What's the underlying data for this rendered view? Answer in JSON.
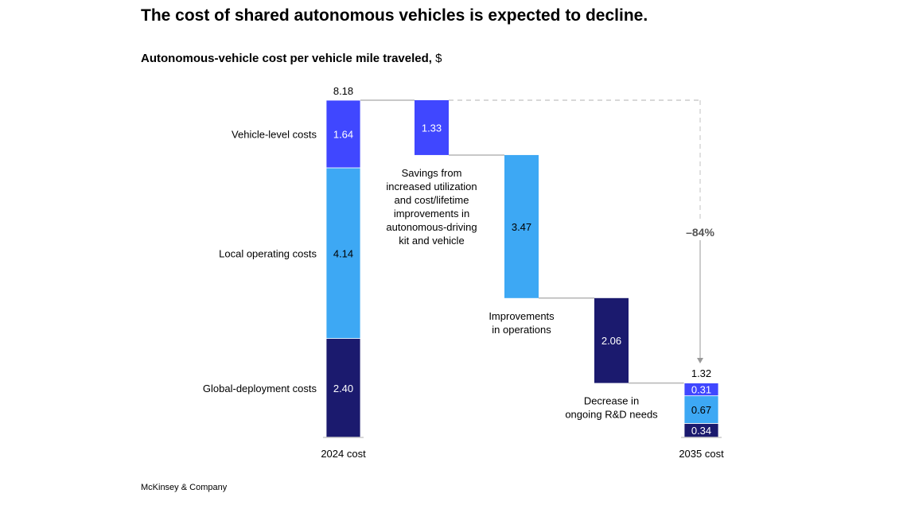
{
  "title": "The cost of shared autonomous vehicles is expected to decline.",
  "subtitle": "Autonomous-vehicle cost per vehicle mile traveled,",
  "subtitle_unit": "$",
  "footer": "McKinsey & Company",
  "colors": {
    "vehicle": "#4047FF",
    "local": "#3DA8F4",
    "global": "#1B1A6E",
    "connector": "#b5b5b5"
  },
  "chart_data": {
    "type": "waterfall",
    "categories": [
      "2024 cost",
      "",
      "",
      "",
      "2035 cost"
    ],
    "total_start": 8.18,
    "total_end": 1.32,
    "stack_labels": [
      "Vehicle-level costs",
      "Local operating costs",
      "Global-deployment costs"
    ],
    "start_stack": [
      1.64,
      4.14,
      2.4
    ],
    "end_stack": [
      0.31,
      0.67,
      0.34
    ],
    "decreases": [
      {
        "value": 1.33,
        "label": "Savings from\nincreased utilization\nand cost/lifetime\nimprovements in\nautonomous-driving\nkit and vehicle",
        "component": "vehicle"
      },
      {
        "value": 3.47,
        "label": "Improvements\nin operations",
        "component": "local"
      },
      {
        "value": 2.06,
        "label": "Decrease in\nongoing R&D needs",
        "component": "global"
      }
    ],
    "change_label": "–84%",
    "ylim": [
      0,
      8.18
    ]
  }
}
